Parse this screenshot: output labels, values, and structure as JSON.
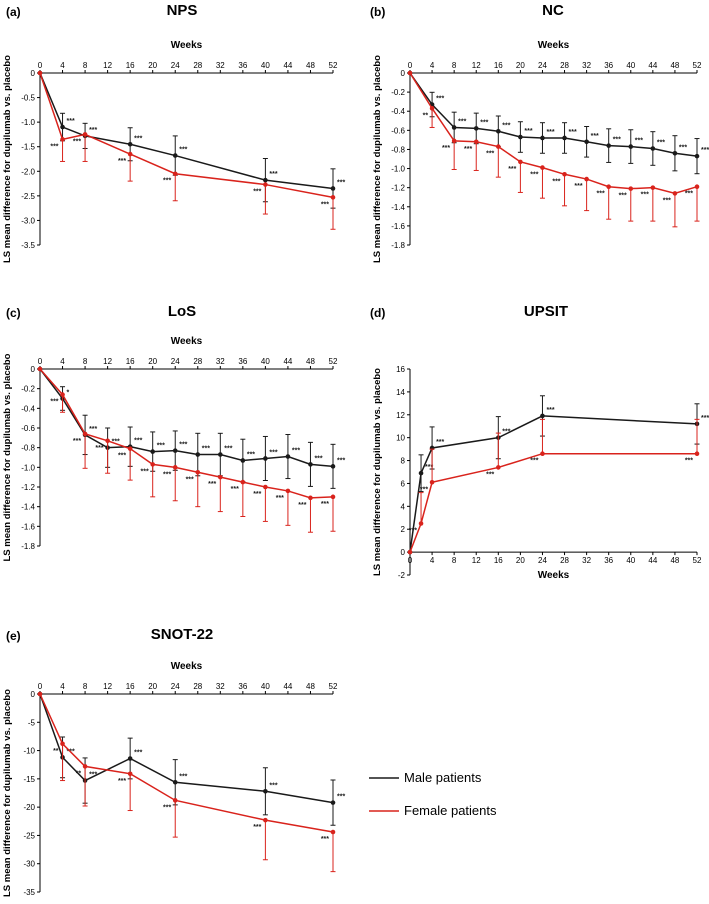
{
  "legend": {
    "entries": [
      {
        "label": "Male patients",
        "color": "#1a1a1a"
      },
      {
        "label": "Female patients",
        "color": "#d9231c"
      }
    ]
  },
  "chart_data": [
    {
      "id": "a",
      "type": "line",
      "panel_label": "(a)",
      "title": "NPS",
      "xlabel": "Weeks",
      "xlabel_position": "top",
      "ylabel": "LS mean difference for dupilumab vs. placebo",
      "xlim": [
        0,
        52
      ],
      "ylim": [
        -3.5,
        0
      ],
      "xticks": [
        0,
        4,
        8,
        12,
        16,
        20,
        24,
        28,
        32,
        36,
        40,
        44,
        48,
        52
      ],
      "yticks": [
        0,
        -0.5,
        -1.0,
        -1.5,
        -2.0,
        -2.5,
        -3.0,
        -3.5
      ],
      "ytick_labels": [
        "0",
        "-0.5",
        "-1.0",
        "-1.5",
        "-2.0",
        "-2.5",
        "-3.0",
        "-3.5"
      ],
      "series": [
        {
          "name": "Male patients",
          "color": "#1a1a1a",
          "x": [
            0,
            4,
            8,
            16,
            24,
            40,
            52
          ],
          "y": [
            0,
            -1.1,
            -1.28,
            -1.45,
            -1.68,
            -2.18,
            -2.35
          ],
          "err": [
            0,
            0.35,
            0.32,
            0.42,
            0.5,
            0.55,
            0.5
          ],
          "labels": [
            "",
            "***",
            "***",
            "***",
            "***",
            "***",
            "***"
          ]
        },
        {
          "name": "Female patients",
          "color": "#d9231c",
          "x": [
            0,
            4,
            8,
            16,
            24,
            40,
            52
          ],
          "y": [
            0,
            -1.35,
            -1.25,
            -1.65,
            -2.05,
            -2.27,
            -2.53
          ],
          "err": [
            0,
            0.45,
            0.55,
            0.55,
            0.55,
            0.6,
            0.65
          ],
          "labels": [
            "",
            "***",
            "***",
            "***",
            "***",
            "***",
            "***"
          ]
        }
      ]
    },
    {
      "id": "b",
      "type": "line",
      "panel_label": "(b)",
      "title": "NC",
      "xlabel": "Weeks",
      "xlabel_position": "top",
      "ylabel": "LS mean difference for dupilumab vs. placebo",
      "xlim": [
        0,
        52
      ],
      "ylim": [
        -1.8,
        0
      ],
      "xticks": [
        0,
        4,
        8,
        12,
        16,
        20,
        24,
        28,
        32,
        36,
        40,
        44,
        48,
        52
      ],
      "yticks": [
        0,
        -0.2,
        -0.4,
        -0.6,
        -0.8,
        -1.0,
        -1.2,
        -1.4,
        -1.6,
        -1.8
      ],
      "ytick_labels": [
        "0",
        "-0.2",
        "-0.4",
        "-0.6",
        "-0.8",
        "-1.0",
        "-1.2",
        "-1.4",
        "-1.6",
        "-1.8"
      ],
      "series": [
        {
          "name": "Male patients",
          "color": "#1a1a1a",
          "x": [
            0,
            4,
            8,
            12,
            16,
            20,
            24,
            28,
            32,
            36,
            40,
            44,
            48,
            52
          ],
          "y": [
            0,
            -0.33,
            -0.57,
            -0.58,
            -0.61,
            -0.67,
            -0.68,
            -0.68,
            -0.72,
            -0.76,
            -0.77,
            -0.79,
            -0.84,
            -0.87
          ],
          "err": [
            0,
            0.16,
            0.2,
            0.2,
            0.2,
            0.2,
            0.2,
            0.2,
            0.2,
            0.22,
            0.22,
            0.22,
            0.23,
            0.23
          ],
          "labels": [
            "",
            "***",
            "***",
            "***",
            "***",
            "***",
            "***",
            "***",
            "***",
            "***",
            "***",
            "***",
            "***",
            "***"
          ]
        },
        {
          "name": "Female patients",
          "color": "#d9231c",
          "x": [
            0,
            4,
            8,
            12,
            16,
            20,
            24,
            28,
            32,
            36,
            40,
            44,
            48,
            52
          ],
          "y": [
            0,
            -0.37,
            -0.71,
            -0.72,
            -0.77,
            -0.93,
            -0.99,
            -1.06,
            -1.11,
            -1.19,
            -1.21,
            -1.2,
            -1.26,
            -1.19
          ],
          "err": [
            0,
            0.2,
            0.3,
            0.3,
            0.32,
            0.32,
            0.32,
            0.33,
            0.33,
            0.34,
            0.34,
            0.35,
            0.35,
            0.36
          ],
          "labels": [
            "",
            "**",
            "***",
            "***",
            "***",
            "***",
            "***",
            "***",
            "***",
            "***",
            "***",
            "***",
            "***",
            "***"
          ]
        }
      ]
    },
    {
      "id": "c",
      "type": "line",
      "panel_label": "(c)",
      "title": "LoS",
      "xlabel": "Weeks",
      "xlabel_position": "top",
      "ylabel": "LS mean difference for dupilumab vs. placebo",
      "xlim": [
        0,
        52
      ],
      "ylim": [
        -1.8,
        0
      ],
      "xticks": [
        0,
        4,
        8,
        12,
        16,
        20,
        24,
        28,
        32,
        36,
        40,
        44,
        48,
        52
      ],
      "yticks": [
        0,
        -0.2,
        -0.4,
        -0.6,
        -0.8,
        -1.0,
        -1.2,
        -1.4,
        -1.6,
        -1.8
      ],
      "ytick_labels": [
        "0",
        "-0.2",
        "-0.4",
        "-0.6",
        "-0.8",
        "-1.0",
        "-1.2",
        "-1.4",
        "-1.6",
        "-1.8"
      ],
      "series": [
        {
          "name": "Male patients",
          "color": "#1a1a1a",
          "x": [
            0,
            4,
            8,
            12,
            16,
            20,
            24,
            28,
            32,
            36,
            40,
            44,
            48,
            52
          ],
          "y": [
            0,
            -0.3,
            -0.67,
            -0.8,
            -0.79,
            -0.84,
            -0.83,
            -0.87,
            -0.87,
            -0.93,
            -0.91,
            -0.89,
            -0.97,
            -0.99
          ],
          "err": [
            0,
            0.15,
            0.25,
            0.25,
            0.25,
            0.25,
            0.25,
            0.27,
            0.27,
            0.27,
            0.28,
            0.28,
            0.28,
            0.28
          ],
          "labels": [
            "",
            "*",
            "***",
            "***",
            "***",
            "***",
            "***",
            "***",
            "***",
            "***",
            "***",
            "***",
            "***",
            "***"
          ]
        },
        {
          "name": "Female patients",
          "color": "#d9231c",
          "x": [
            0,
            4,
            8,
            12,
            16,
            20,
            24,
            28,
            32,
            36,
            40,
            44,
            48,
            52
          ],
          "y": [
            0,
            -0.26,
            -0.66,
            -0.73,
            -0.81,
            -0.97,
            -1.0,
            -1.05,
            -1.1,
            -1.15,
            -1.2,
            -1.24,
            -1.31,
            -1.3
          ],
          "err": [
            0,
            0.18,
            0.35,
            0.33,
            0.32,
            0.33,
            0.34,
            0.35,
            0.35,
            0.35,
            0.35,
            0.35,
            0.35,
            0.35
          ],
          "labels": [
            "",
            "***",
            "***",
            "***",
            "***",
            "***",
            "***",
            "***",
            "***",
            "***",
            "***",
            "***",
            "***",
            "***"
          ]
        }
      ]
    },
    {
      "id": "d",
      "type": "line",
      "panel_label": "(d)",
      "title": "UPSIT",
      "xlabel": "Weeks",
      "xlabel_position": "bottom",
      "ylabel": "LS mean difference for dupilumab vs. placebo",
      "xlim": [
        0,
        52
      ],
      "ylim": [
        -2,
        16
      ],
      "xticks": [
        0,
        4,
        8,
        12,
        16,
        20,
        24,
        28,
        32,
        36,
        40,
        44,
        48,
        52
      ],
      "yticks": [
        16,
        14,
        12,
        10,
        8,
        6,
        4,
        2,
        0,
        -2
      ],
      "ytick_labels": [
        "16",
        "14",
        "12",
        "10",
        "8",
        "6",
        "4",
        "2",
        "0",
        "-2"
      ],
      "series": [
        {
          "name": "Male patients",
          "color": "#1a1a1a",
          "x": [
            0,
            2,
            4,
            16,
            24,
            52
          ],
          "y": [
            0,
            6.9,
            9.1,
            10.0,
            11.9,
            11.2
          ],
          "err": [
            0,
            2.0,
            2.3,
            2.3,
            2.2,
            2.2
          ],
          "labels": [
            "",
            "***",
            "***",
            "***",
            "***",
            "***"
          ]
        },
        {
          "name": "Female patients",
          "color": "#d9231c",
          "x": [
            0,
            2,
            4,
            16,
            24,
            52
          ],
          "y": [
            0,
            2.5,
            6.1,
            7.4,
            8.6,
            8.6
          ],
          "err": [
            0,
            2.7,
            2.9,
            3.0,
            3.0,
            3.0
          ],
          "labels": [
            "",
            "***",
            "***",
            "***",
            "***",
            "***"
          ]
        }
      ]
    },
    {
      "id": "e",
      "type": "line",
      "panel_label": "(e)",
      "title": "SNOT-22",
      "xlabel": "Weeks",
      "xlabel_position": "top",
      "ylabel": "LS mean difference for dupilumab vs. placebo",
      "xlim": [
        0,
        52
      ],
      "ylim": [
        -35,
        0
      ],
      "xticks": [
        0,
        4,
        8,
        12,
        16,
        20,
        24,
        28,
        32,
        36,
        40,
        44,
        48,
        52
      ],
      "yticks": [
        0,
        -5,
        -10,
        -15,
        -20,
        -25,
        -30,
        -35
      ],
      "ytick_labels": [
        "0",
        "-5",
        "-10",
        "-15",
        "-20",
        "-25",
        "-30",
        "-35"
      ],
      "series": [
        {
          "name": "Male patients",
          "color": "#1a1a1a",
          "x": [
            0,
            4,
            8,
            16,
            24,
            40,
            52
          ],
          "y": [
            0,
            -11.2,
            -15.3,
            -11.4,
            -15.6,
            -17.2,
            -19.2
          ],
          "err": [
            0,
            4.5,
            5.0,
            4.5,
            5.0,
            5.2,
            5.0
          ],
          "labels": [
            "",
            "***",
            "***",
            "***",
            "***",
            "***",
            "***"
          ]
        },
        {
          "name": "Female patients",
          "color": "#d9231c",
          "x": [
            0,
            4,
            8,
            16,
            24,
            40,
            52
          ],
          "y": [
            0,
            -8.8,
            -12.8,
            -14.1,
            -18.8,
            -22.3,
            -24.4
          ],
          "err": [
            0,
            6.5,
            7.0,
            6.5,
            6.5,
            7.0,
            7.0
          ],
          "labels": [
            "",
            "**",
            "**",
            "***",
            "***",
            "***",
            "***"
          ]
        }
      ]
    }
  ]
}
